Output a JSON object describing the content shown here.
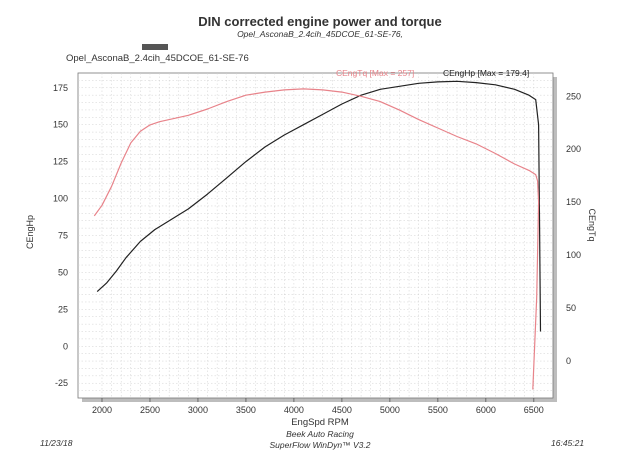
{
  "chart_data": {
    "type": "line",
    "title": "DIN corrected engine power and torque",
    "subtitle": "Opel_AsconaB_2.4cih_45DCOE_61-SE-76,",
    "run_label": "Opel_AsconaB_2.4cih_45DCOE_61-SE-76",
    "xlabel": "EngSpd RPM",
    "ylabel_left": "CEngHp",
    "ylabel_right": "CEngTq",
    "xlim": [
      1750,
      6700
    ],
    "ylim_left": [
      -35,
      185
    ],
    "ylim_right": [
      -35,
      272
    ],
    "x_ticks": [
      2000,
      2500,
      3000,
      3500,
      4000,
      4500,
      5000,
      5500,
      6000,
      6500
    ],
    "y_left_ticks": [
      -25,
      0,
      25,
      50,
      75,
      100,
      125,
      150,
      175
    ],
    "y_right_ticks": [
      0,
      50,
      100,
      150,
      200,
      250
    ],
    "grid": true,
    "series": [
      {
        "name": "CEngHp",
        "annotation": "CEngHp [Max = 179.4]",
        "color": "#222222",
        "axis": "left",
        "x": [
          1950,
          2050,
          2150,
          2250,
          2400,
          2550,
          2700,
          2900,
          3100,
          3300,
          3500,
          3700,
          3900,
          4100,
          4300,
          4500,
          4700,
          4900,
          5100,
          5300,
          5500,
          5700,
          5900,
          6100,
          6300,
          6450,
          6520,
          6550,
          6560,
          6570
        ],
        "y": [
          37,
          43,
          51,
          60,
          71,
          79,
          85,
          93,
          103,
          114,
          125,
          135,
          143,
          150,
          157,
          164,
          170,
          174,
          176,
          178,
          179,
          179.4,
          178.5,
          177,
          174,
          170,
          167,
          150,
          80,
          10
        ]
      },
      {
        "name": "CEngTq",
        "annotation": "CEngTq [Max = 257]",
        "color": "#e8838a",
        "axis": "right",
        "x": [
          1920,
          2000,
          2100,
          2200,
          2300,
          2400,
          2500,
          2600,
          2700,
          2900,
          3100,
          3300,
          3500,
          3700,
          3900,
          4100,
          4300,
          4500,
          4700,
          4900,
          5100,
          5300,
          5500,
          5700,
          5900,
          6100,
          6300,
          6450,
          6520,
          6540,
          6550,
          6530,
          6490
        ],
        "y": [
          137,
          147,
          165,
          187,
          206,
          217,
          223,
          226,
          228,
          232,
          238,
          245,
          251,
          254,
          256,
          257,
          256,
          254,
          250,
          245,
          237,
          228,
          220,
          212,
          205,
          196,
          186,
          180,
          176,
          170,
          150,
          60,
          -27
        ]
      }
    ]
  },
  "footer": {
    "center_line1": "Beek Auto Racing",
    "center_line2": "SuperFlow WinDyn™ V3.2",
    "date": "11/23/18",
    "time": "16:45:21"
  }
}
